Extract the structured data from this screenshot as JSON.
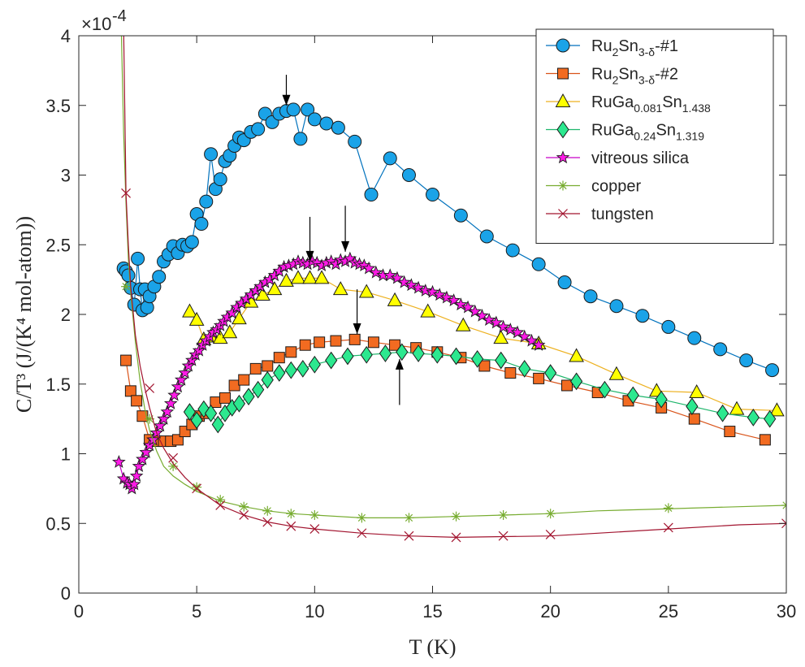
{
  "chart_data": {
    "type": "scatter",
    "xlabel": "T (K)",
    "ylabel": "C/T³ (J/(K⁴ mol-atom))",
    "xlim": [
      0,
      30
    ],
    "ylim": [
      0,
      4
    ],
    "xticks": [
      0,
      5,
      10,
      15,
      20,
      25,
      30
    ],
    "yticks": [
      0,
      0.5,
      1,
      1.5,
      2,
      2.5,
      3,
      3.5,
      4
    ],
    "y_multiplier": "×10",
    "y_exponent": "-4",
    "grid": false,
    "legend_position": "top-right",
    "series": [
      {
        "name": "Ru2Sn3-δ-#1",
        "legend": {
          "base": "Ru",
          "sub1": "2",
          "mid": "Sn",
          "sub2": "3-δ",
          "suffix": "-#1"
        },
        "color": "#0072BD",
        "fill": "#1AA3E8",
        "marker": "circle",
        "x": [
          1.9,
          2.0,
          2.1,
          2.2,
          2.35,
          2.5,
          2.6,
          2.7,
          2.8,
          2.9,
          3.0,
          3.2,
          3.4,
          3.6,
          3.8,
          4.0,
          4.2,
          4.4,
          4.6,
          4.8,
          5.0,
          5.2,
          5.4,
          5.6,
          5.8,
          6.0,
          6.2,
          6.4,
          6.6,
          6.8,
          7.0,
          7.3,
          7.6,
          7.9,
          8.2,
          8.5,
          8.8,
          9.1,
          9.4,
          9.7,
          10.0,
          10.5,
          11.0,
          11.7,
          12.4,
          13.2,
          14.0,
          15.0,
          16.2,
          17.3,
          18.4,
          19.5,
          20.6,
          21.7,
          22.8,
          23.9,
          25.0,
          26.1,
          27.2,
          28.3,
          29.4
        ],
        "y": [
          2.33,
          2.31,
          2.28,
          2.19,
          2.07,
          2.4,
          2.18,
          2.03,
          2.18,
          2.05,
          2.13,
          2.2,
          2.27,
          2.38,
          2.43,
          2.49,
          2.44,
          2.5,
          2.49,
          2.52,
          2.72,
          2.65,
          2.81,
          3.15,
          2.9,
          2.97,
          3.1,
          3.14,
          3.21,
          3.27,
          3.25,
          3.31,
          3.33,
          3.44,
          3.38,
          3.44,
          3.46,
          3.47,
          3.26,
          3.47,
          3.4,
          3.37,
          3.34,
          3.24,
          2.86,
          3.12,
          3.0,
          2.86,
          2.71,
          2.56,
          2.46,
          2.36,
          2.23,
          2.13,
          2.06,
          1.99,
          1.91,
          1.83,
          1.75,
          1.67,
          1.6
        ]
      },
      {
        "name": "Ru2Sn3-δ-#2",
        "legend": {
          "base": "Ru",
          "sub1": "2",
          "mid": "Sn",
          "sub2": "3-δ",
          "suffix": "-#2"
        },
        "color": "#D95319",
        "fill": "#F26B21",
        "marker": "square",
        "x": [
          2.0,
          2.2,
          2.45,
          2.7,
          3.0,
          3.3,
          3.6,
          3.9,
          4.2,
          4.5,
          4.8,
          5.1,
          5.4,
          5.8,
          6.2,
          6.6,
          7.0,
          7.5,
          8.0,
          8.5,
          9.0,
          9.6,
          10.2,
          10.9,
          11.7,
          12.5,
          13.4,
          14.3,
          15.2,
          16.2,
          17.2,
          18.3,
          19.5,
          20.7,
          22.0,
          23.3,
          24.7,
          26.1,
          27.6,
          29.1
        ],
        "y": [
          1.67,
          1.45,
          1.38,
          1.27,
          1.1,
          1.09,
          1.09,
          1.09,
          1.1,
          1.16,
          1.21,
          1.27,
          1.29,
          1.37,
          1.4,
          1.49,
          1.53,
          1.61,
          1.63,
          1.69,
          1.73,
          1.78,
          1.8,
          1.81,
          1.82,
          1.8,
          1.78,
          1.76,
          1.73,
          1.69,
          1.63,
          1.58,
          1.54,
          1.49,
          1.44,
          1.38,
          1.33,
          1.25,
          1.16,
          1.1
        ]
      },
      {
        "name": "RuGa0.081Sn1.438",
        "legend": {
          "base": "RuGa",
          "sub1": "0.081",
          "mid": "Sn",
          "sub2": "1.438",
          "suffix": ""
        },
        "color": "#EDB120",
        "fill": "#FFFF00",
        "marker": "triangle",
        "x": [
          4.7,
          5.0,
          5.3,
          5.6,
          6.0,
          6.4,
          6.8,
          7.3,
          7.8,
          8.3,
          8.8,
          9.3,
          9.8,
          10.3,
          11.1,
          12.2,
          13.4,
          14.8,
          16.3,
          17.9,
          19.5,
          21.1,
          22.8,
          24.5,
          26.2,
          27.9,
          29.6
        ],
        "y": [
          2.02,
          1.96,
          1.82,
          1.84,
          1.83,
          1.87,
          1.97,
          2.09,
          2.14,
          2.18,
          2.24,
          2.26,
          2.26,
          2.26,
          2.18,
          2.16,
          2.1,
          2.02,
          1.92,
          1.83,
          1.79,
          1.7,
          1.57,
          1.45,
          1.44,
          1.32,
          1.31
        ]
      },
      {
        "name": "RuGa0.24Sn1.319",
        "legend": {
          "base": "RuGa",
          "sub1": "0.24",
          "mid": "Sn",
          "sub2": "1.319",
          "suffix": ""
        },
        "color": "#1EB56B",
        "fill": "#2CE88F",
        "marker": "diamond",
        "x": [
          4.7,
          5.0,
          5.3,
          5.6,
          5.9,
          6.2,
          6.5,
          6.8,
          7.2,
          7.6,
          8.0,
          8.5,
          9.0,
          9.5,
          10.0,
          10.7,
          11.4,
          12.2,
          13.0,
          13.7,
          14.4,
          15.2,
          16.0,
          16.9,
          17.9,
          18.9,
          20.0,
          21.1,
          22.3,
          23.5,
          24.7,
          26.0,
          27.3,
          28.6,
          29.3
        ],
        "y": [
          1.3,
          1.24,
          1.32,
          1.29,
          1.21,
          1.29,
          1.33,
          1.36,
          1.41,
          1.46,
          1.53,
          1.58,
          1.6,
          1.61,
          1.64,
          1.67,
          1.7,
          1.71,
          1.72,
          1.73,
          1.72,
          1.71,
          1.7,
          1.68,
          1.67,
          1.61,
          1.58,
          1.52,
          1.46,
          1.42,
          1.39,
          1.34,
          1.29,
          1.26,
          1.25
        ]
      },
      {
        "name": "vitreous silica",
        "legend": {
          "base": "vitreous silica",
          "sub1": "",
          "mid": "",
          "sub2": "",
          "suffix": ""
        },
        "color": "#C800C8",
        "fill": "#FF1AE6",
        "marker": "star",
        "x": [
          1.7,
          1.9,
          2.05,
          2.15,
          2.25,
          2.35,
          2.45,
          2.55,
          2.7,
          2.85,
          3.0,
          3.15,
          3.3,
          3.45,
          3.6,
          3.75,
          3.9,
          4.05,
          4.2,
          4.35,
          4.5,
          4.65,
          4.8,
          4.95,
          5.1,
          5.25,
          5.4,
          5.55,
          5.7,
          5.85,
          6.0,
          6.15,
          6.3,
          6.5,
          6.7,
          6.9,
          7.1,
          7.3,
          7.5,
          7.7,
          7.9,
          8.1,
          8.3,
          8.5,
          8.7,
          8.9,
          9.1,
          9.3,
          9.5,
          9.7,
          9.9,
          10.1,
          10.3,
          10.5,
          10.7,
          10.9,
          11.1,
          11.3,
          11.5,
          11.7,
          11.9,
          12.1,
          12.3,
          12.6,
          12.9,
          13.2,
          13.5,
          13.8,
          14.1,
          14.4,
          14.7,
          15.0,
          15.3,
          15.6,
          15.9,
          16.2,
          16.5,
          16.8,
          17.1,
          17.4,
          17.7,
          18.0,
          18.3,
          18.6,
          18.9,
          19.2,
          19.5
        ],
        "y": [
          0.94,
          0.82,
          0.79,
          0.78,
          0.75,
          0.78,
          0.84,
          0.91,
          0.96,
          1.01,
          1.06,
          1.1,
          1.15,
          1.2,
          1.25,
          1.3,
          1.36,
          1.42,
          1.48,
          1.53,
          1.58,
          1.63,
          1.67,
          1.71,
          1.74,
          1.78,
          1.81,
          1.84,
          1.87,
          1.89,
          1.92,
          1.95,
          1.98,
          2.01,
          2.05,
          2.08,
          2.11,
          2.14,
          2.17,
          2.2,
          2.23,
          2.25,
          2.28,
          2.31,
          2.34,
          2.35,
          2.36,
          2.38,
          2.37,
          2.36,
          2.38,
          2.37,
          2.35,
          2.37,
          2.38,
          2.36,
          2.39,
          2.38,
          2.4,
          2.37,
          2.36,
          2.35,
          2.33,
          2.3,
          2.28,
          2.28,
          2.26,
          2.23,
          2.21,
          2.19,
          2.17,
          2.16,
          2.14,
          2.12,
          2.1,
          2.07,
          2.05,
          2.02,
          1.99,
          1.96,
          1.94,
          1.91,
          1.89,
          1.87,
          1.84,
          1.81,
          1.78
        ]
      },
      {
        "name": "copper",
        "legend": {
          "base": "copper",
          "sub1": "",
          "mid": "",
          "sub2": "",
          "suffix": ""
        },
        "color": "#77AC30",
        "fill": "none",
        "marker": "asterisk",
        "line_x": [
          1.8,
          1.9,
          2.0,
          2.1,
          2.2,
          2.4,
          2.6,
          2.8,
          3.0,
          3.3,
          3.6,
          4.0,
          4.5,
          5.0,
          6.0,
          7.0,
          8.0,
          9.0,
          10.0,
          12.0,
          14.0,
          16.0,
          18.0,
          20.0,
          22.0,
          24.0,
          26.0,
          28.0,
          30.0
        ],
        "line_y": [
          4.05,
          3.3,
          2.8,
          2.4,
          2.15,
          1.8,
          1.52,
          1.32,
          1.17,
          1.02,
          0.91,
          0.84,
          0.78,
          0.73,
          0.66,
          0.62,
          0.59,
          0.57,
          0.56,
          0.54,
          0.54,
          0.55,
          0.56,
          0.57,
          0.59,
          0.6,
          0.61,
          0.62,
          0.63
        ],
        "x": [
          2.0,
          3.0,
          4.0,
          5.0,
          6.0,
          7.0,
          8.0,
          9.0,
          10.0,
          12.0,
          14.0,
          16.0,
          18.0,
          20.0,
          25.0,
          30.0
        ],
        "y": [
          2.2,
          1.25,
          0.91,
          0.76,
          0.67,
          0.62,
          0.59,
          0.57,
          0.56,
          0.54,
          0.54,
          0.55,
          0.56,
          0.57,
          0.61,
          0.63
        ]
      },
      {
        "name": "tungsten",
        "legend": {
          "base": "tungsten",
          "sub1": "",
          "mid": "",
          "sub2": "",
          "suffix": ""
        },
        "color": "#A2142F",
        "fill": "none",
        "marker": "cross",
        "line_x": [
          1.9,
          2.0,
          2.1,
          2.2,
          2.4,
          2.6,
          2.8,
          3.0,
          3.3,
          3.6,
          4.0,
          4.5,
          5.0,
          6.0,
          7.0,
          8.0,
          9.0,
          10.0,
          12.0,
          14.0,
          16.0,
          18.0,
          20.0,
          22.0,
          25.0,
          28.0,
          30.0
        ],
        "line_y": [
          4.05,
          2.87,
          2.5,
          2.2,
          1.85,
          1.63,
          1.47,
          1.33,
          1.15,
          1.04,
          0.93,
          0.83,
          0.75,
          0.63,
          0.56,
          0.51,
          0.48,
          0.46,
          0.43,
          0.41,
          0.4,
          0.405,
          0.41,
          0.43,
          0.46,
          0.49,
          0.5
        ],
        "x": [
          2.0,
          3.0,
          4.0,
          5.0,
          6.0,
          7.0,
          8.0,
          9.0,
          10.0,
          12.0,
          14.0,
          16.0,
          18.0,
          20.0,
          25.0,
          30.0
        ],
        "y": [
          2.87,
          1.47,
          0.97,
          0.75,
          0.63,
          0.56,
          0.51,
          0.48,
          0.46,
          0.43,
          0.41,
          0.4,
          0.41,
          0.42,
          0.47,
          0.5
        ]
      }
    ],
    "annotations": [
      {
        "type": "arrow-down",
        "x": 8.8,
        "y": 3.5,
        "y_tail": 3.72
      },
      {
        "type": "arrow-down",
        "x": 9.8,
        "y": 2.38,
        "y_tail": 2.7
      },
      {
        "type": "arrow-down",
        "x": 11.3,
        "y": 2.45,
        "y_tail": 2.78
      },
      {
        "type": "arrow-down",
        "x": 11.8,
        "y": 1.86,
        "y_tail": 2.18
      },
      {
        "type": "arrow-up",
        "x": 13.6,
        "y": 1.68,
        "y_tail": 1.35
      }
    ]
  }
}
